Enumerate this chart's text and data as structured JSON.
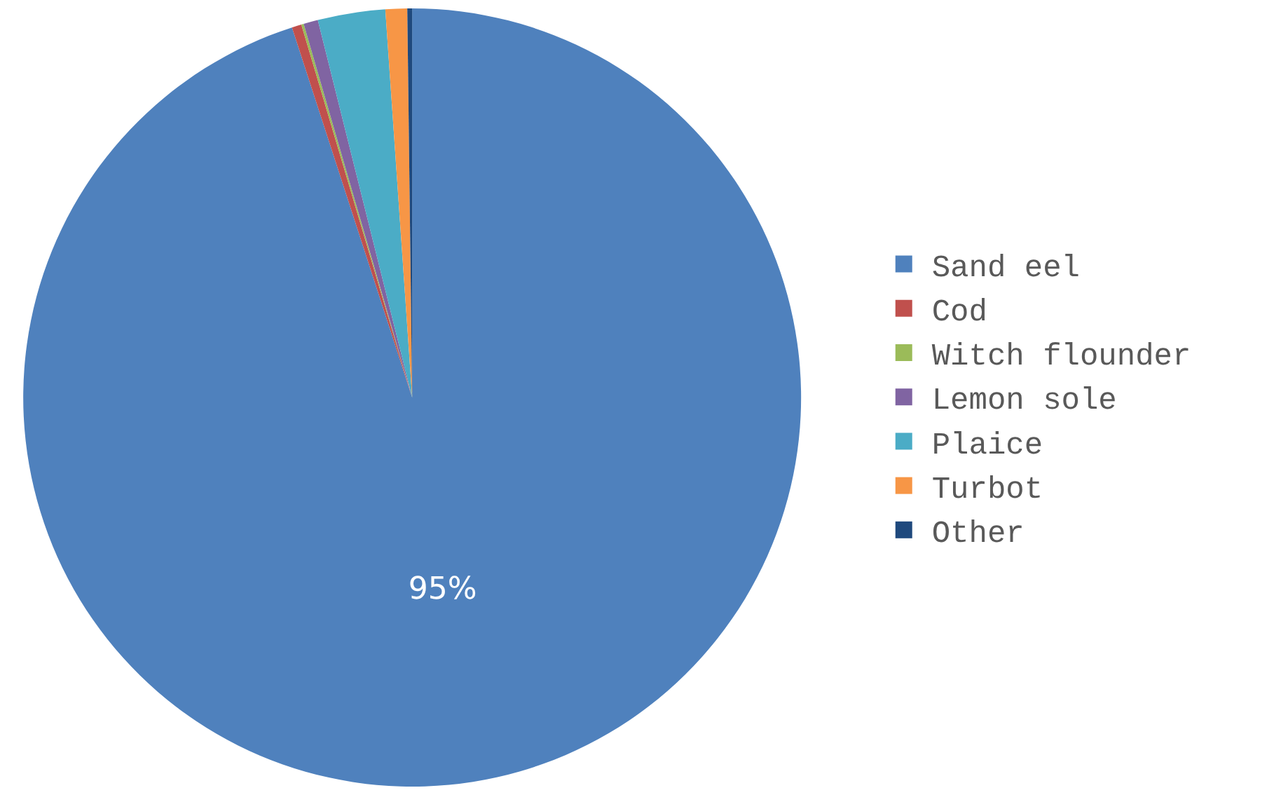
{
  "chart_data": {
    "type": "pie",
    "categories": [
      "Sand eel",
      "Cod",
      "Witch flounder",
      "Lemon sole",
      "Plaice",
      "Turbot",
      "Other"
    ],
    "values": [
      95,
      0.4,
      0.1,
      0.6,
      2.8,
      0.9,
      0.2
    ],
    "colors": [
      "#4f81bd",
      "#c0504d",
      "#9bbb59",
      "#8064a2",
      "#4bacc6",
      "#f79646",
      "#1f497d"
    ],
    "value_labels": [
      "95%",
      null,
      null,
      null,
      null,
      null,
      null
    ],
    "legend": "right"
  }
}
